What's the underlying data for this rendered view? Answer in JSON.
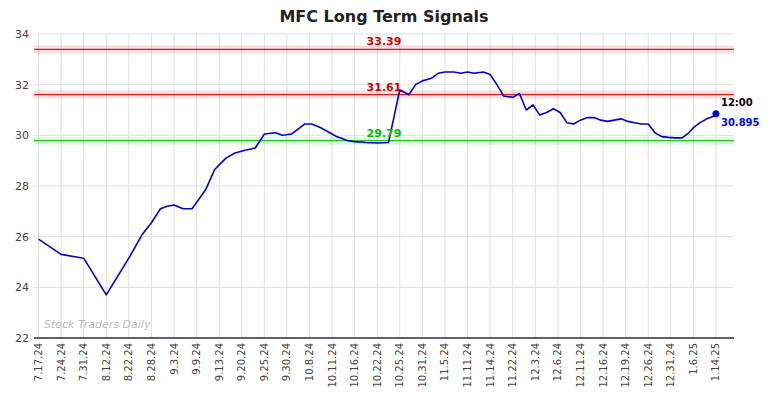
{
  "chart_data": {
    "type": "line",
    "title": "MFC Long Term Signals",
    "x": [
      0,
      1,
      2,
      3,
      4,
      4.6,
      5.0,
      5.4,
      5.7,
      6.0,
      6.4,
      6.8,
      7.4,
      7.8,
      8.3,
      8.7,
      9.1,
      9.6,
      10.0,
      10.5,
      10.8,
      11.2,
      11.8,
      12.1,
      12.5,
      12.9,
      13.2,
      13.7,
      14.0,
      14.5,
      15.0,
      15.5,
      16.0,
      16.4,
      16.7,
      17.0,
      17.4,
      17.7,
      18.0,
      18.4,
      18.7,
      19.0,
      19.3,
      19.7,
      20.0,
      20.3,
      20.6,
      21.0,
      21.3,
      21.6,
      21.9,
      22.2,
      22.5,
      22.8,
      23.1,
      23.4,
      23.7,
      24.0,
      24.3,
      24.6,
      24.9,
      25.2,
      25.5,
      25.8,
      26.1,
      26.4,
      26.7,
      27.0,
      27.3,
      27.6,
      27.9,
      28.2,
      28.5,
      28.8,
      29.0,
      29.3,
      29.6,
      29.9,
      30.0
    ],
    "values": [
      25.9,
      25.3,
      25.15,
      23.7,
      25.15,
      26.1,
      26.55,
      27.1,
      27.2,
      27.25,
      27.1,
      27.1,
      27.85,
      28.65,
      29.1,
      29.3,
      29.4,
      29.5,
      30.05,
      30.1,
      30.0,
      30.05,
      30.45,
      30.45,
      30.3,
      30.1,
      29.95,
      29.79,
      29.75,
      29.72,
      29.7,
      29.72,
      31.8,
      31.6,
      32.0,
      32.15,
      32.25,
      32.45,
      32.5,
      32.5,
      32.45,
      32.5,
      32.45,
      32.5,
      32.4,
      32.0,
      31.55,
      31.5,
      31.65,
      31.0,
      31.2,
      30.8,
      30.9,
      31.05,
      30.9,
      30.5,
      30.45,
      30.6,
      30.7,
      30.7,
      30.6,
      30.55,
      30.6,
      30.65,
      30.55,
      30.5,
      30.45,
      30.45,
      30.1,
      29.95,
      29.92,
      29.9,
      29.9,
      30.1,
      30.3,
      30.5,
      30.65,
      30.75,
      30.85
    ],
    "color": "#0000cc",
    "xlim": [
      -0.2,
      30.8
    ],
    "xticks": [
      {
        "value": 0,
        "label": "7.17.24"
      },
      {
        "value": 1,
        "label": "7.24.24"
      },
      {
        "value": 2,
        "label": "7.31.24"
      },
      {
        "value": 3,
        "label": "8.12.24"
      },
      {
        "value": 4,
        "label": "8.22.24"
      },
      {
        "value": 5,
        "label": "8.28.24"
      },
      {
        "value": 6,
        "label": "9.3.24"
      },
      {
        "value": 7,
        "label": "9.9.24"
      },
      {
        "value": 8,
        "label": "9.13.24"
      },
      {
        "value": 9,
        "label": "9.20.24"
      },
      {
        "value": 10,
        "label": "9.25.24"
      },
      {
        "value": 11,
        "label": "9.30.24"
      },
      {
        "value": 12,
        "label": "10.8.24"
      },
      {
        "value": 13,
        "label": "10.11.24"
      },
      {
        "value": 14,
        "label": "10.16.24"
      },
      {
        "value": 15,
        "label": "10.22.24"
      },
      {
        "value": 16,
        "label": "10.25.24"
      },
      {
        "value": 17,
        "label": "10.31.24"
      },
      {
        "value": 18,
        "label": "11.5.24"
      },
      {
        "value": 19,
        "label": "11.11.24"
      },
      {
        "value": 20,
        "label": "11.14.24"
      },
      {
        "value": 21,
        "label": "11.22.24"
      },
      {
        "value": 22,
        "label": "12.3.24"
      },
      {
        "value": 23,
        "label": "12.6.24"
      },
      {
        "value": 24,
        "label": "12.11.24"
      },
      {
        "value": 25,
        "label": "12.16.24"
      },
      {
        "value": 26,
        "label": "12.19.24"
      },
      {
        "value": 27,
        "label": "12.26.24"
      },
      {
        "value": 28,
        "label": "12.31.24"
      },
      {
        "value": 29,
        "label": "1.6.25"
      },
      {
        "value": 30,
        "label": "1.14.25"
      }
    ],
    "ylim": [
      22,
      34
    ],
    "yticks": [
      22,
      24,
      26,
      28,
      30,
      32,
      34
    ],
    "grid": true,
    "reference_lines": [
      {
        "value": 33.39,
        "label": "33.39",
        "color": "#cc0000"
      },
      {
        "value": 31.61,
        "label": "31.61",
        "color": "#cc0000"
      },
      {
        "value": 29.79,
        "label": "29.79",
        "color": "#00bb00"
      }
    ],
    "annotations": [
      {
        "text": "12:00"
      },
      {
        "text": "30.895",
        "color": "#0000ff"
      }
    ],
    "watermark": "Stock Traders Daily"
  }
}
